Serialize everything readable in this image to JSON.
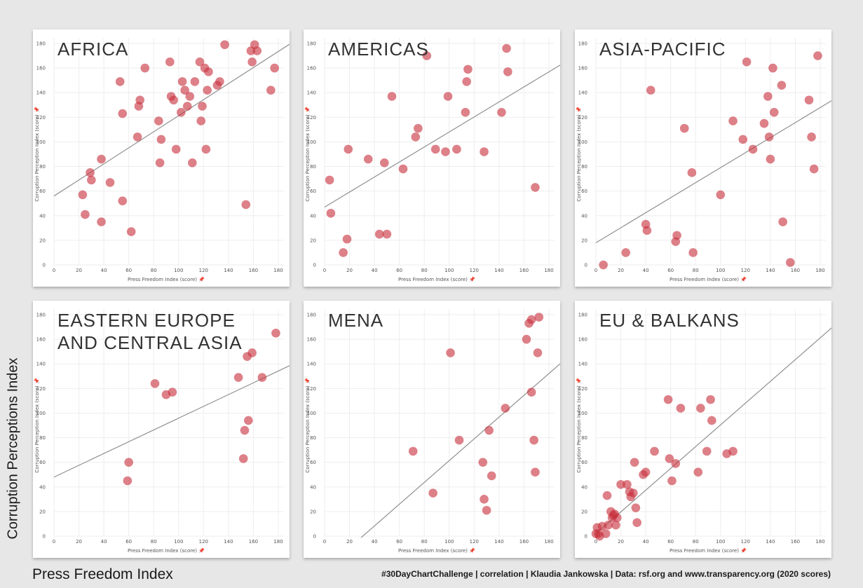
{
  "y_main_title": "Corruption Perceptions Index",
  "x_main_title": "Press Freedom Index",
  "credits": "#30DayChartChallenge  |  correlation  |  Klaudia Jankowska  |  Data: rsf.org and www.transparency.org (2020 scores)",
  "colors": {
    "point": "#c8323f",
    "trend": "#909090",
    "grid": "#eeeeee"
  },
  "chart_data": [
    {
      "type": "scatter",
      "title": "AFRICA",
      "xlabel": "Press Freedom Index (score)",
      "ylabel": "Corruption Perception Index (score)",
      "xlim": [
        0,
        180
      ],
      "ylim": [
        0,
        180
      ],
      "xticks": [
        0,
        20,
        40,
        60,
        80,
        100,
        120,
        140,
        160,
        180
      ],
      "yticks": [
        0,
        20,
        40,
        60,
        80,
        100,
        120,
        140,
        160,
        180
      ],
      "trend": [
        [
          0,
          56
        ],
        [
          190,
          180
        ]
      ],
      "points": [
        [
          38,
          86
        ],
        [
          23,
          57
        ],
        [
          25,
          41
        ],
        [
          29,
          75
        ],
        [
          30,
          69
        ],
        [
          38,
          35
        ],
        [
          45,
          67
        ],
        [
          55,
          52
        ],
        [
          53,
          149
        ],
        [
          55,
          123
        ],
        [
          62,
          27
        ],
        [
          67,
          104
        ],
        [
          68,
          129
        ],
        [
          69,
          134
        ],
        [
          73,
          160
        ],
        [
          84,
          117
        ],
        [
          85,
          83
        ],
        [
          86,
          102
        ],
        [
          93,
          165
        ],
        [
          94,
          137
        ],
        [
          96,
          134
        ],
        [
          98,
          94
        ],
        [
          102,
          124
        ],
        [
          103,
          149
        ],
        [
          105,
          142
        ],
        [
          107,
          129
        ],
        [
          109,
          137
        ],
        [
          111,
          83
        ],
        [
          113,
          149
        ],
        [
          117,
          165
        ],
        [
          118,
          117
        ],
        [
          119,
          129
        ],
        [
          121,
          160
        ],
        [
          122,
          94
        ],
        [
          123,
          142
        ],
        [
          124,
          157
        ],
        [
          131,
          146
        ],
        [
          133,
          149
        ],
        [
          137,
          179
        ],
        [
          154,
          49
        ],
        [
          158,
          174
        ],
        [
          159,
          165
        ],
        [
          161,
          179
        ],
        [
          163,
          174
        ],
        [
          174,
          142
        ],
        [
          177,
          160
        ]
      ]
    },
    {
      "type": "scatter",
      "title": "AMERICAS",
      "xlabel": "Press Freedom Index (score)",
      "ylabel": "Corruption Perception Index (score)",
      "xlim": [
        0,
        180
      ],
      "ylim": [
        0,
        180
      ],
      "xticks": [
        0,
        20,
        40,
        60,
        80,
        100,
        120,
        140,
        160,
        180
      ],
      "yticks": [
        0,
        20,
        40,
        60,
        80,
        100,
        120,
        140,
        160,
        180
      ],
      "trend": [
        [
          0,
          47
        ],
        [
          190,
          163
        ]
      ],
      "points": [
        [
          4,
          69
        ],
        [
          5,
          42
        ],
        [
          15,
          10
        ],
        [
          18,
          21
        ],
        [
          19,
          94
        ],
        [
          35,
          86
        ],
        [
          44,
          25
        ],
        [
          48,
          83
        ],
        [
          50,
          25
        ],
        [
          54,
          137
        ],
        [
          63,
          78
        ],
        [
          73,
          104
        ],
        [
          75,
          111
        ],
        [
          82,
          170
        ],
        [
          89,
          94
        ],
        [
          97,
          92
        ],
        [
          99,
          137
        ],
        [
          106,
          94
        ],
        [
          113,
          124
        ],
        [
          114,
          149
        ],
        [
          115,
          159
        ],
        [
          128,
          92
        ],
        [
          142,
          124
        ],
        [
          146,
          176
        ],
        [
          147,
          157
        ],
        [
          169,
          63
        ]
      ]
    },
    {
      "type": "scatter",
      "title": "ASIA-PACIFIC",
      "xlabel": "Press Freedom Index (score)",
      "ylabel": "Corruption Perception Index (score)",
      "xlim": [
        0,
        180
      ],
      "ylim": [
        0,
        180
      ],
      "xticks": [
        0,
        20,
        40,
        60,
        80,
        100,
        120,
        140,
        160,
        180
      ],
      "yticks": [
        0,
        20,
        40,
        60,
        80,
        100,
        120,
        140,
        160,
        180
      ],
      "trend": [
        [
          0,
          18
        ],
        [
          190,
          134
        ]
      ],
      "points": [
        [
          6,
          0
        ],
        [
          24,
          10
        ],
        [
          40,
          33
        ],
        [
          41,
          28
        ],
        [
          44,
          142
        ],
        [
          64,
          19
        ],
        [
          65,
          24
        ],
        [
          71,
          111
        ],
        [
          77,
          75
        ],
        [
          78,
          10
        ],
        [
          100,
          57
        ],
        [
          110,
          117
        ],
        [
          118,
          102
        ],
        [
          121,
          165
        ],
        [
          126,
          94
        ],
        [
          135,
          115
        ],
        [
          138,
          137
        ],
        [
          139,
          104
        ],
        [
          140,
          86
        ],
        [
          142,
          160
        ],
        [
          143,
          124
        ],
        [
          149,
          146
        ],
        [
          150,
          35
        ],
        [
          156,
          2
        ],
        [
          171,
          134
        ],
        [
          173,
          104
        ],
        [
          175,
          78
        ],
        [
          178,
          170
        ]
      ]
    },
    {
      "type": "scatter",
      "title": "EASTERN EUROPE\nAND CENTRAL ASIA",
      "xlabel": "Press Freedom Index (score)",
      "ylabel": "Corruption Perception Index (score)",
      "xlim": [
        0,
        180
      ],
      "ylim": [
        0,
        180
      ],
      "xticks": [
        0,
        20,
        40,
        60,
        80,
        100,
        120,
        140,
        160,
        180
      ],
      "yticks": [
        0,
        20,
        40,
        60,
        80,
        100,
        120,
        140,
        160,
        180
      ],
      "trend": [
        [
          0,
          48
        ],
        [
          190,
          139
        ]
      ],
      "points": [
        [
          59,
          45
        ],
        [
          60,
          60
        ],
        [
          81,
          124
        ],
        [
          90,
          115
        ],
        [
          95,
          117
        ],
        [
          148,
          129
        ],
        [
          152,
          63
        ],
        [
          153,
          86
        ],
        [
          155,
          146
        ],
        [
          156,
          94
        ],
        [
          159,
          149
        ],
        [
          167,
          129
        ],
        [
          178,
          165
        ]
      ]
    },
    {
      "type": "scatter",
      "title": "MENA",
      "xlabel": "Press Freedom Index (score)",
      "ylabel": "Corruption Perception Index (score)",
      "xlim": [
        0,
        180
      ],
      "ylim": [
        0,
        180
      ],
      "xticks": [
        0,
        20,
        40,
        60,
        80,
        100,
        120,
        140,
        160,
        180
      ],
      "yticks": [
        0,
        20,
        40,
        60,
        80,
        100,
        120,
        140,
        160,
        180
      ],
      "trend": [
        [
          25,
          -5
        ],
        [
          190,
          141
        ]
      ],
      "points": [
        [
          71,
          69
        ],
        [
          87,
          35
        ],
        [
          101,
          149
        ],
        [
          108,
          78
        ],
        [
          127,
          60
        ],
        [
          128,
          30
        ],
        [
          130,
          21
        ],
        [
          132,
          86
        ],
        [
          134,
          49
        ],
        [
          145,
          104
        ],
        [
          162,
          160
        ],
        [
          164,
          173
        ],
        [
          166,
          117
        ],
        [
          166,
          176
        ],
        [
          168,
          78
        ],
        [
          169,
          52
        ],
        [
          171,
          149
        ],
        [
          172,
          178
        ]
      ]
    },
    {
      "type": "scatter",
      "title": "EU & BALKANS",
      "xlabel": "Press Freedom Index (score)",
      "ylabel": "Corruption Perception Index (score)",
      "xlim": [
        0,
        180
      ],
      "ylim": [
        0,
        180
      ],
      "xticks": [
        0,
        20,
        40,
        60,
        80,
        100,
        120,
        140,
        160,
        180
      ],
      "yticks": [
        0,
        20,
        40,
        60,
        80,
        100,
        120,
        140,
        160,
        180
      ],
      "trend": [
        [
          0,
          2
        ],
        [
          190,
          170
        ]
      ],
      "points": [
        [
          0,
          2
        ],
        [
          1,
          7
        ],
        [
          2,
          2
        ],
        [
          3,
          0
        ],
        [
          5,
          8
        ],
        [
          8,
          2
        ],
        [
          9,
          33
        ],
        [
          10,
          9
        ],
        [
          12,
          20
        ],
        [
          13,
          15
        ],
        [
          14,
          17
        ],
        [
          15,
          18
        ],
        [
          16,
          9
        ],
        [
          17,
          15
        ],
        [
          20,
          42
        ],
        [
          25,
          42
        ],
        [
          27,
          36
        ],
        [
          28,
          32
        ],
        [
          30,
          35
        ],
        [
          31,
          60
        ],
        [
          32,
          23
        ],
        [
          33,
          11
        ],
        [
          38,
          50
        ],
        [
          40,
          52
        ],
        [
          47,
          69
        ],
        [
          58,
          111
        ],
        [
          59,
          63
        ],
        [
          61,
          45
        ],
        [
          64,
          59
        ],
        [
          68,
          104
        ],
        [
          82,
          52
        ],
        [
          84,
          104
        ],
        [
          89,
          69
        ],
        [
          92,
          111
        ],
        [
          93,
          94
        ],
        [
          105,
          67
        ],
        [
          110,
          69
        ]
      ]
    }
  ]
}
